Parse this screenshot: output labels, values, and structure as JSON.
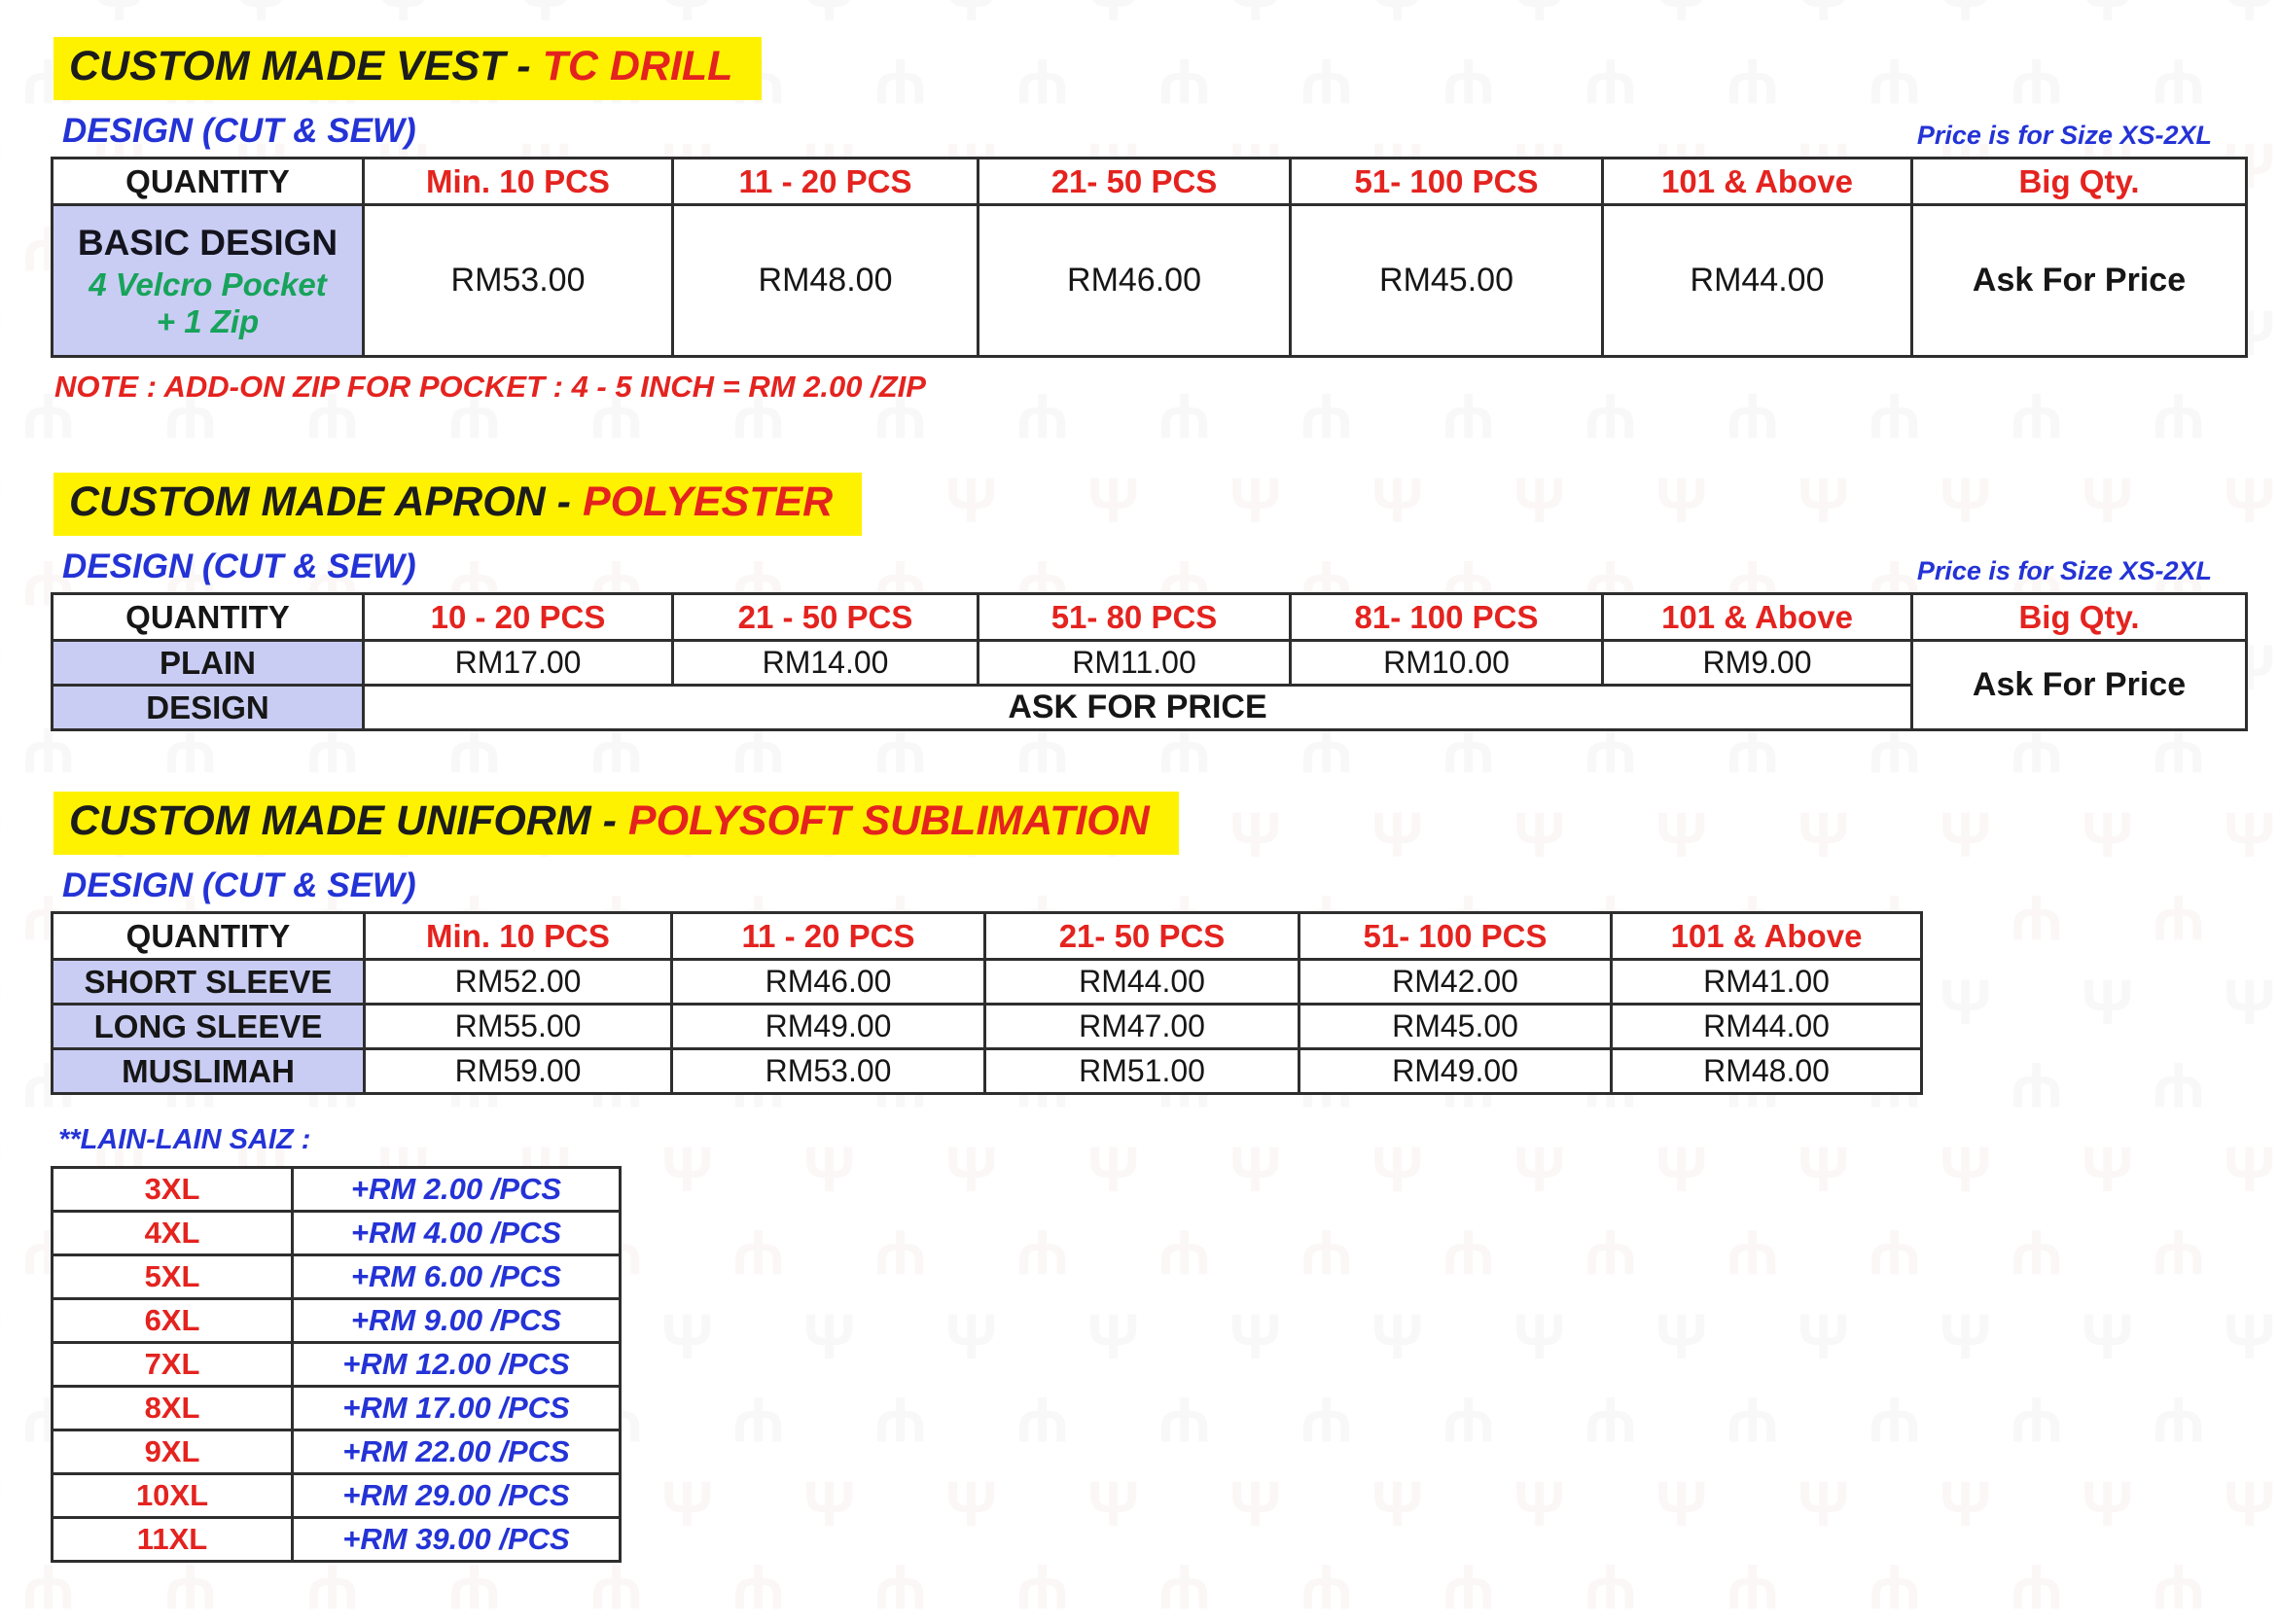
{
  "vest": {
    "title": "CUSTOM MADE VEST - ",
    "title_accent": "TC DRILL",
    "design_label": "DESIGN (CUT & SEW)",
    "size_note": "Price is for Size XS-2XL",
    "columns": [
      "QUANTITY",
      "Min. 10 PCS",
      "11 - 20 PCS",
      "21- 50 PCS",
      "51- 100 PCS",
      "101 & Above",
      "Big Qty."
    ],
    "row": {
      "label": "BASIC DESIGN",
      "sub1": "4 Velcro Pocket",
      "sub2": "+ 1 Zip",
      "prices": [
        "RM53.00",
        "RM48.00",
        "RM46.00",
        "RM45.00",
        "RM44.00"
      ],
      "big_qty": "Ask For Price"
    },
    "note": "NOTE : ADD-ON ZIP FOR POCKET : 4 - 5 INCH = RM 2.00 /ZIP"
  },
  "apron": {
    "title": "CUSTOM MADE APRON - ",
    "title_accent": "POLYESTER",
    "design_label": "DESIGN (CUT & SEW)",
    "size_note": "Price is for Size XS-2XL",
    "columns": [
      "QUANTITY",
      "10 - 20 PCS",
      "21 - 50 PCS",
      "51- 80 PCS",
      "81- 100 PCS",
      "101 & Above",
      "Big Qty."
    ],
    "rows": [
      {
        "label": "PLAIN",
        "prices": [
          "RM17.00",
          "RM14.00",
          "RM11.00",
          "RM10.00",
          "RM9.00"
        ]
      },
      {
        "label": "DESIGN",
        "merged": "ASK FOR PRICE"
      }
    ],
    "big_qty": "Ask For Price"
  },
  "uniform": {
    "title": "CUSTOM MADE UNIFORM - ",
    "title_accent": "POLYSOFT SUBLIMATION",
    "design_label": "DESIGN (CUT & SEW)",
    "columns": [
      "QUANTITY",
      "Min. 10 PCS",
      "11 - 20 PCS",
      "21- 50 PCS",
      "51- 100 PCS",
      "101 & Above"
    ],
    "rows": [
      {
        "label": "SHORT SLEEVE",
        "prices": [
          "RM52.00",
          "RM46.00",
          "RM44.00",
          "RM42.00",
          "RM41.00"
        ]
      },
      {
        "label": "LONG SLEEVE",
        "prices": [
          "RM55.00",
          "RM49.00",
          "RM47.00",
          "RM45.00",
          "RM44.00"
        ]
      },
      {
        "label": "MUSLIMAH",
        "prices": [
          "RM59.00",
          "RM53.00",
          "RM51.00",
          "RM49.00",
          "RM48.00"
        ]
      }
    ]
  },
  "sizes": {
    "heading": "**LAIN-LAIN SAIZ :",
    "rows": [
      [
        "3XL",
        "+RM 2.00 /PCS"
      ],
      [
        "4XL",
        "+RM 4.00 /PCS"
      ],
      [
        "5XL",
        "+RM 6.00 /PCS"
      ],
      [
        "6XL",
        "+RM 9.00 /PCS"
      ],
      [
        "7XL",
        "+RM 12.00 /PCS"
      ],
      [
        "8XL",
        "+RM 17.00 /PCS"
      ],
      [
        "9XL",
        "+RM 22.00 /PCS"
      ],
      [
        "10XL",
        "+RM 29.00 /PCS"
      ],
      [
        "11XL",
        "+RM 39.00 /PCS"
      ]
    ]
  }
}
